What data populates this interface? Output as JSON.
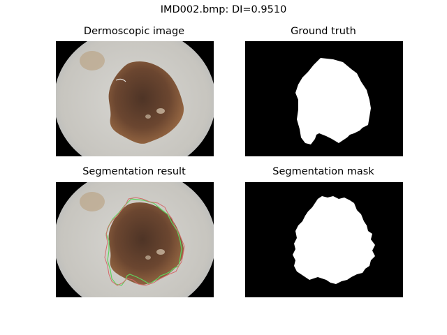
{
  "figure": {
    "title": "IMD002.bmp: DI=0.9510"
  },
  "panels": {
    "dermoscopic": {
      "title": "Dermoscopic image"
    },
    "ground_truth": {
      "title": "Ground truth"
    },
    "segmentation_result": {
      "title": "Segmentation result"
    },
    "segmentation_mask": {
      "title": "Segmentation mask"
    }
  },
  "colors": {
    "skin": "#c9c6c0",
    "lesion": "#6b4630",
    "lesion_edge": "#9a6a44",
    "vignette": "#000000",
    "mask_fg": "#ffffff",
    "mask_bg": "#000000",
    "contour_gt": "#5fd35f",
    "contour_seg": "#d46a6a"
  }
}
